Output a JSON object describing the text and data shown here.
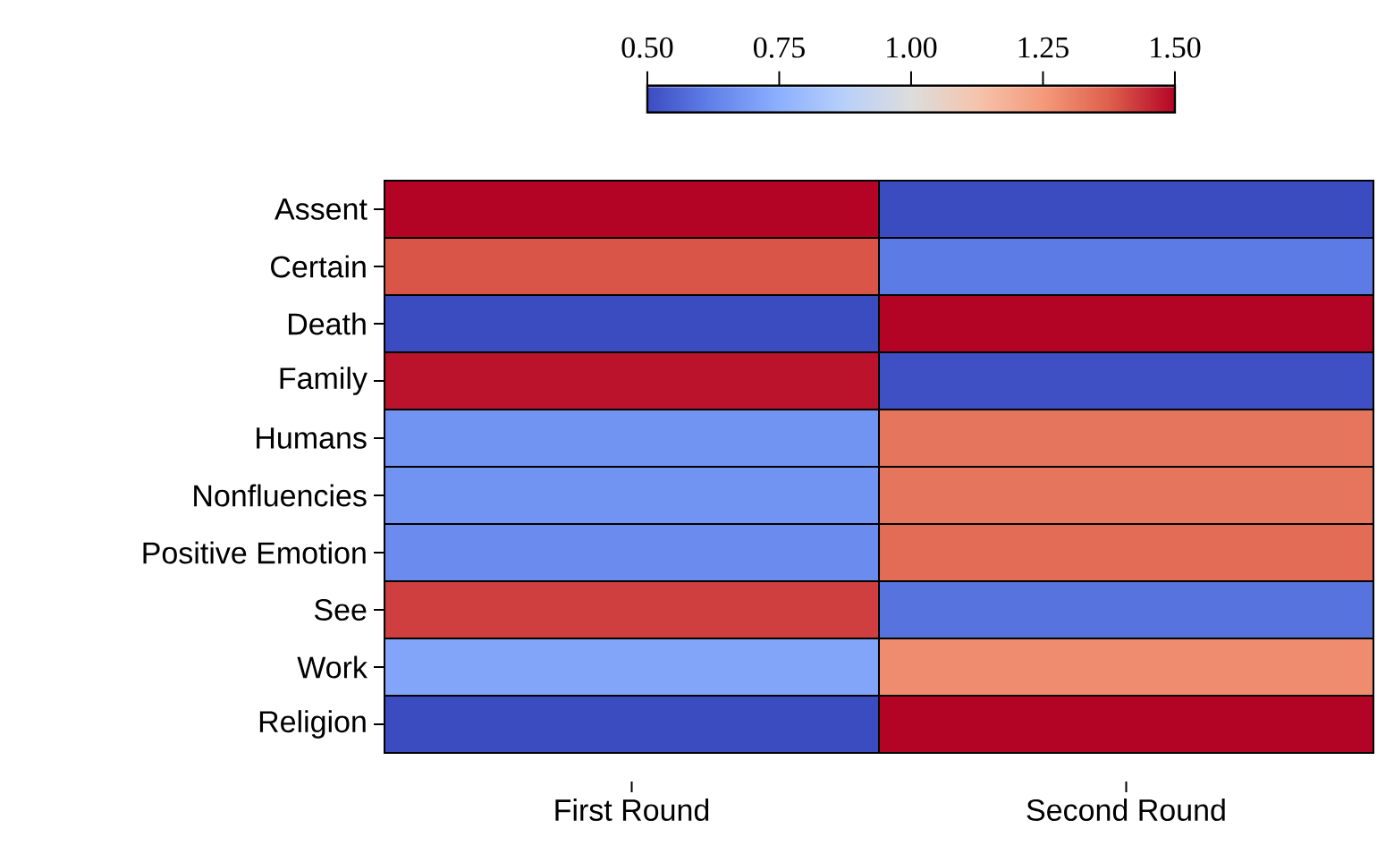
{
  "chart_data": {
    "type": "heatmap",
    "categories": [
      "First Round",
      "Second Round"
    ],
    "y_categories": [
      "Assent",
      "Certain",
      "Death",
      "Family",
      "Humans",
      "Nonfluencies",
      "Positive Emotion",
      "See",
      "Work",
      "Religion"
    ],
    "cells": [
      [
        1.5,
        0.5
      ],
      [
        1.39,
        0.61
      ],
      [
        0.5,
        1.5
      ],
      [
        1.48,
        0.51
      ],
      [
        0.67,
        1.33
      ],
      [
        0.67,
        1.33
      ],
      [
        0.65,
        1.35
      ],
      [
        1.42,
        0.59
      ],
      [
        0.72,
        1.28
      ],
      [
        0.5,
        1.5
      ]
    ],
    "clim": [
      0.5,
      1.5
    ],
    "cticks": [
      {
        "value": 0.5,
        "label": "0.50"
      },
      {
        "value": 0.75,
        "label": "0.75"
      },
      {
        "value": 1.0,
        "label": "1.00"
      },
      {
        "value": 1.25,
        "label": "1.25"
      },
      {
        "value": 1.5,
        "label": "1.50"
      }
    ]
  }
}
